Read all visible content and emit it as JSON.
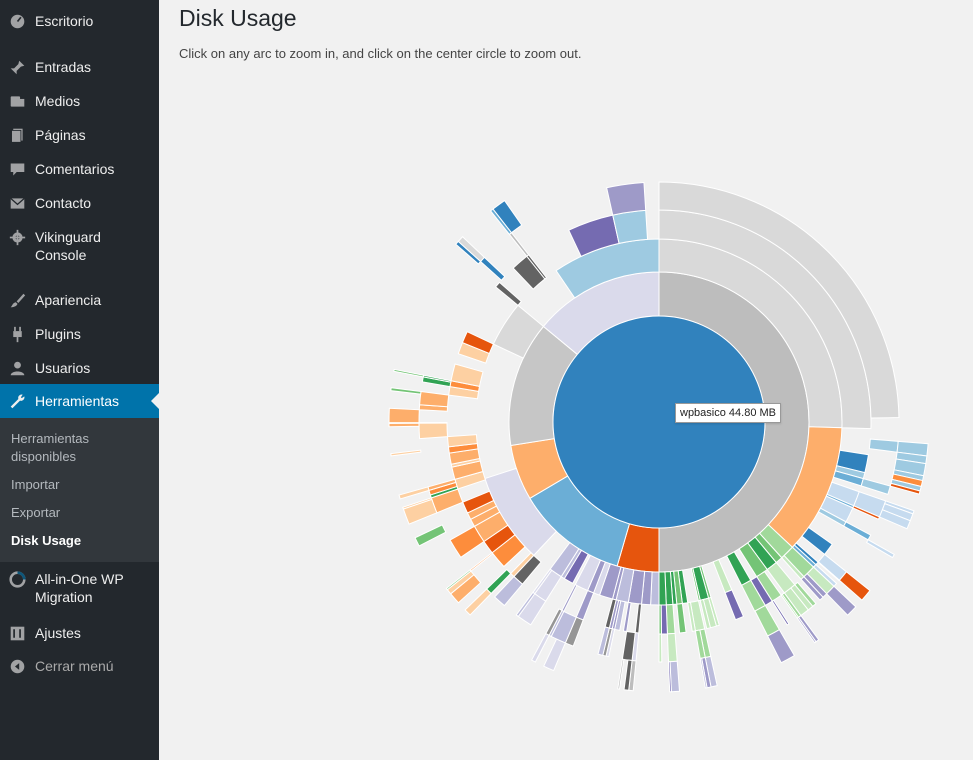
{
  "sidebar": {
    "items": [
      {
        "label": "Escritorio",
        "icon": "dashboard-icon"
      },
      {
        "label": "Entradas",
        "icon": "pin-icon"
      },
      {
        "label": "Medios",
        "icon": "media-icon"
      },
      {
        "label": "Páginas",
        "icon": "pages-icon"
      },
      {
        "label": "Comentarios",
        "icon": "comments-icon"
      },
      {
        "label": "Contacto",
        "icon": "mail-icon"
      },
      {
        "label": "Vikinguard Console",
        "icon": "gear-icon"
      },
      {
        "label": "Apariencia",
        "icon": "brush-icon"
      },
      {
        "label": "Plugins",
        "icon": "plugin-icon"
      },
      {
        "label": "Usuarios",
        "icon": "users-icon"
      },
      {
        "label": "Herramientas",
        "icon": "wrench-icon",
        "active": true
      },
      {
        "label": "All-in-One WP Migration",
        "icon": "migration-icon"
      },
      {
        "label": "Ajustes",
        "icon": "settings-icon"
      }
    ],
    "submenu": [
      "Herramientas disponibles",
      "Importar",
      "Exportar",
      "Disk Usage"
    ],
    "submenu_current": "Disk Usage",
    "collapse_label": "Cerrar menú",
    "accent_color": "#0073aa",
    "background_color": "#23282d"
  },
  "page": {
    "title": "Disk Usage",
    "description": "Click on any arc to zoom in, and click on the center circle to zoom out."
  },
  "chart_data": {
    "type": "sunburst",
    "root": {
      "name": "wpbasico",
      "size_mb": 44.8,
      "color": "#3182bd"
    },
    "tooltip": "wpbasico 44.80 MB",
    "level1": [
      {
        "fraction": 0.5,
        "color": "#bdbdbd"
      },
      {
        "fraction": 0.045,
        "color": "#e6550d"
      },
      {
        "fraction": 0.12,
        "color": "#6baed6"
      },
      {
        "fraction": 0.06,
        "color": "#fdae6b"
      },
      {
        "fraction": 0.135,
        "color": "#c6c6c6"
      },
      {
        "fraction": 0.14,
        "color": "#dadaeb"
      }
    ],
    "palette": [
      "#3182bd",
      "#6baed6",
      "#9ecae1",
      "#c6dbef",
      "#e6550d",
      "#fd8d3c",
      "#fdae6b",
      "#fdd0a2",
      "#31a354",
      "#74c476",
      "#a1d99b",
      "#c7e9c0",
      "#756bb1",
      "#9e9ac8",
      "#bcbddc",
      "#dadaeb",
      "#636363",
      "#969696",
      "#bdbdbd",
      "#d9d9d9"
    ]
  }
}
